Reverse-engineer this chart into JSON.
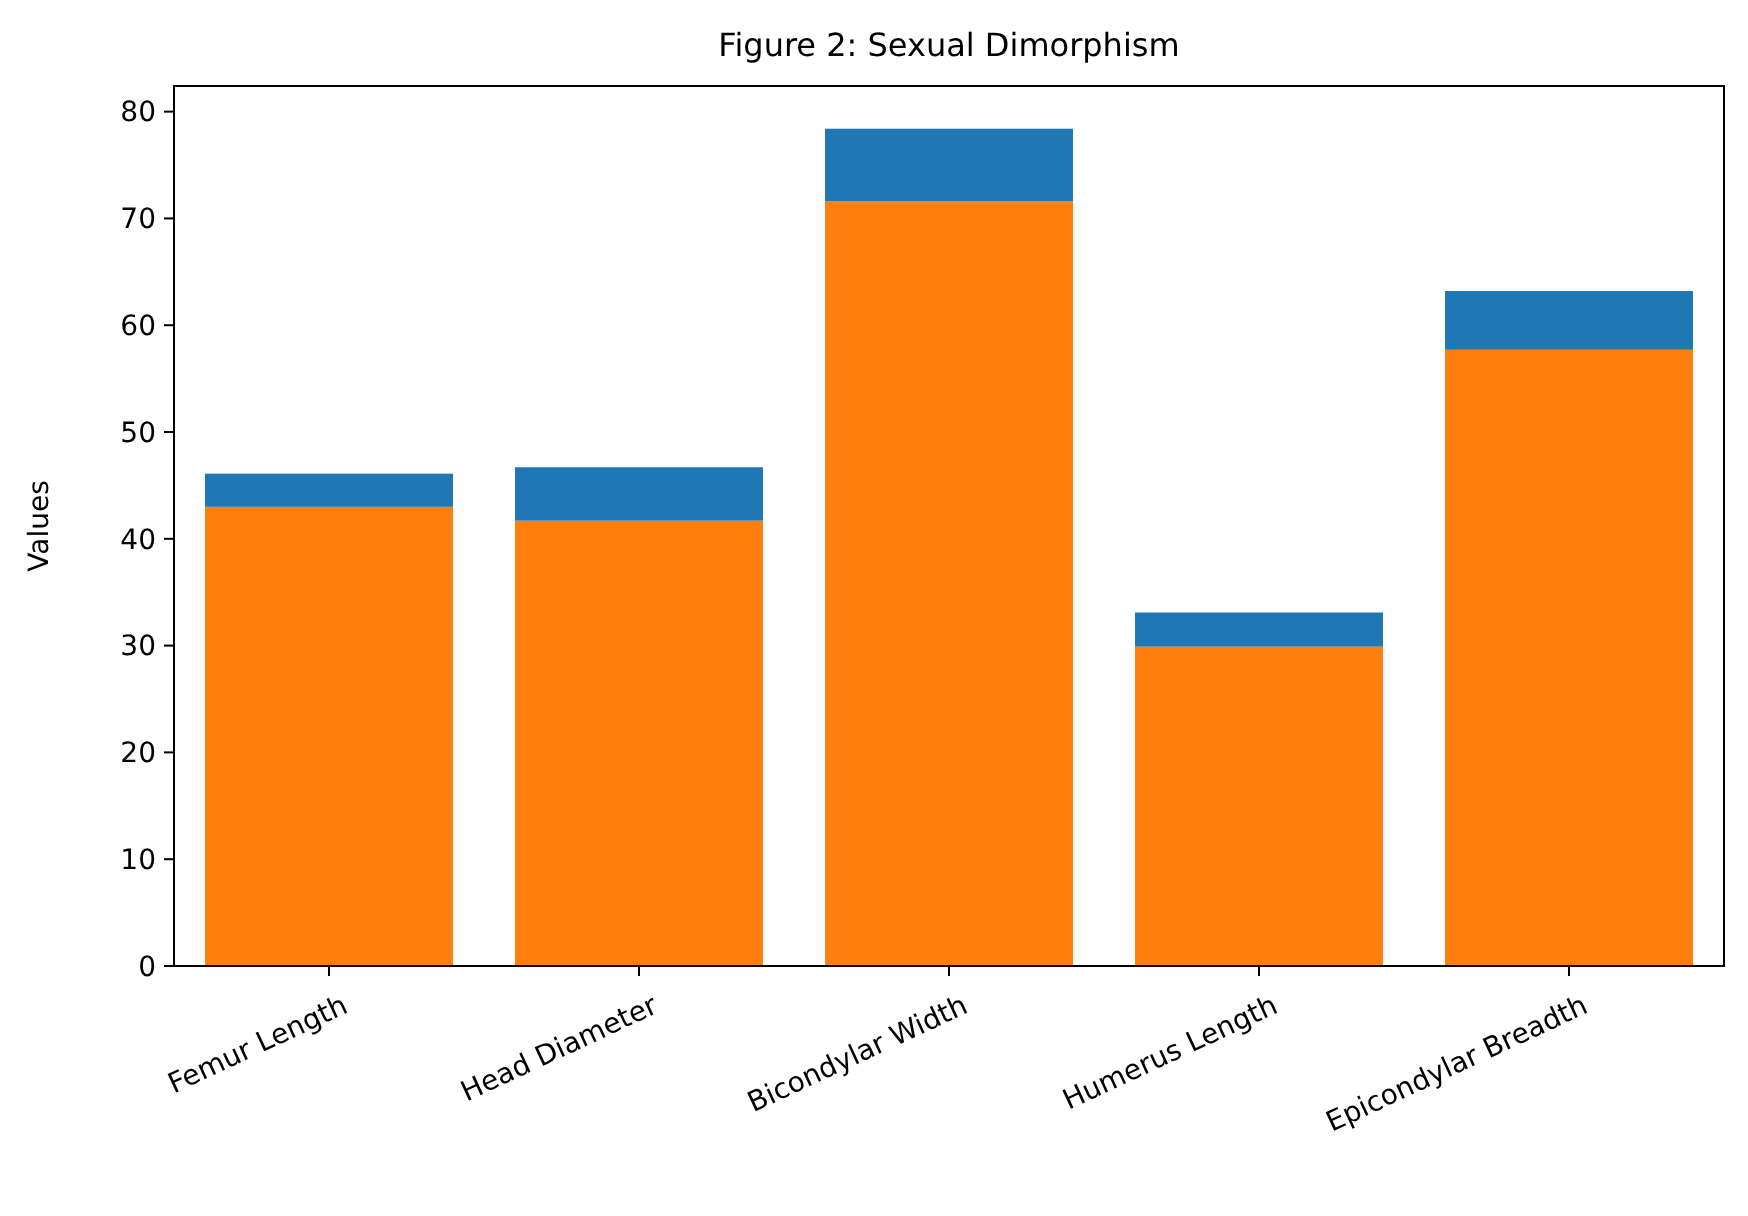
{
  "chart_data": {
    "type": "bar",
    "title": "Figure 2: Sexual Dimorphism",
    "ylabel": "Values",
    "categories": [
      "Femur Length",
      "Head Diameter",
      "Bicondylar Width",
      "Humerus Length",
      "Epicondylar Breadth"
    ],
    "series": [
      {
        "color": "#ff7f0e",
        "values": [
          43.0,
          41.7,
          71.6,
          29.9,
          57.7
        ]
      },
      {
        "color": "#1f77b4",
        "values": [
          3.1,
          5.0,
          6.8,
          3.2,
          5.5
        ]
      }
    ],
    "stacked": true,
    "ylim": [
      0,
      82.4
    ],
    "yticks": [
      0,
      10,
      20,
      30,
      40,
      50,
      60,
      70,
      80
    ]
  }
}
